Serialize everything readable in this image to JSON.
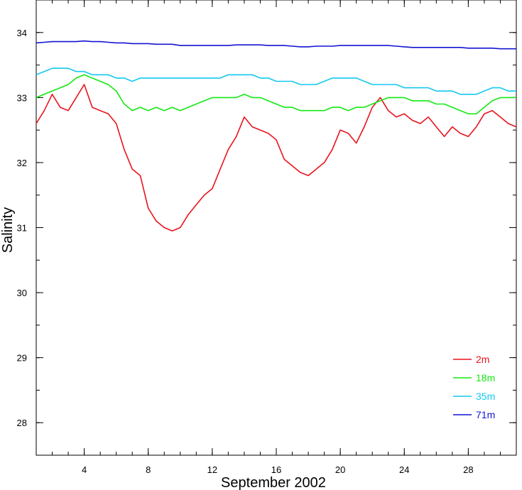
{
  "chart_data": {
    "type": "line",
    "title": "",
    "xlabel": "September 2002",
    "ylabel": "Salinity",
    "xlim": [
      1,
      31
    ],
    "ylim": [
      27.5,
      34.5
    ],
    "x_ticks": [
      4,
      8,
      12,
      16,
      20,
      24,
      28
    ],
    "x_minor_step": 1,
    "y_ticks": [
      28,
      29,
      30,
      31,
      32,
      33,
      34
    ],
    "y_minor_step": 0.5,
    "grid": false,
    "legend_position": "bottom-right",
    "series": [
      {
        "name": "2m",
        "color": "#e8141e",
        "x": [
          1,
          1.5,
          2,
          2.5,
          3,
          3.5,
          4,
          4.5,
          5,
          5.5,
          6,
          6.5,
          7,
          7.5,
          8,
          8.5,
          9,
          9.5,
          10,
          10.5,
          11,
          11.5,
          12,
          12.5,
          13,
          13.5,
          14,
          14.5,
          15,
          15.5,
          16,
          16.5,
          17,
          17.5,
          18,
          18.5,
          19,
          19.5,
          20,
          20.5,
          21,
          21.5,
          22,
          22.5,
          23,
          23.5,
          24,
          24.5,
          25,
          25.5,
          26,
          26.5,
          27,
          27.5,
          28,
          28.5,
          29,
          29.5,
          30,
          30.5,
          31
        ],
        "values": [
          32.6,
          32.8,
          33.05,
          32.85,
          32.8,
          33.0,
          33.2,
          32.85,
          32.8,
          32.75,
          32.6,
          32.2,
          31.9,
          31.8,
          31.3,
          31.1,
          31.0,
          30.95,
          31.0,
          31.2,
          31.35,
          31.5,
          31.6,
          31.9,
          32.2,
          32.4,
          32.7,
          32.55,
          32.5,
          32.45,
          32.35,
          32.05,
          31.95,
          31.85,
          31.8,
          31.9,
          32.0,
          32.2,
          32.5,
          32.45,
          32.3,
          32.55,
          32.85,
          33.0,
          32.8,
          32.7,
          32.75,
          32.65,
          32.6,
          32.7,
          32.55,
          32.4,
          32.55,
          32.45,
          32.4,
          32.55,
          32.75,
          32.8,
          32.7,
          32.6,
          32.55
        ]
      },
      {
        "name": "18m",
        "color": "#14e814",
        "x": [
          1,
          1.5,
          2,
          2.5,
          3,
          3.5,
          4,
          4.5,
          5,
          5.5,
          6,
          6.5,
          7,
          7.5,
          8,
          8.5,
          9,
          9.5,
          10,
          10.5,
          11,
          11.5,
          12,
          12.5,
          13,
          13.5,
          14,
          14.5,
          15,
          15.5,
          16,
          16.5,
          17,
          17.5,
          18,
          18.5,
          19,
          19.5,
          20,
          20.5,
          21,
          21.5,
          22,
          22.5,
          23,
          23.5,
          24,
          24.5,
          25,
          25.5,
          26,
          26.5,
          27,
          27.5,
          28,
          28.5,
          29,
          29.5,
          30,
          30.5,
          31
        ],
        "values": [
          33.0,
          33.05,
          33.1,
          33.15,
          33.2,
          33.3,
          33.35,
          33.3,
          33.25,
          33.2,
          33.1,
          32.9,
          32.8,
          32.85,
          32.8,
          32.85,
          32.8,
          32.85,
          32.8,
          32.85,
          32.9,
          32.95,
          33.0,
          33.0,
          33.0,
          33.0,
          33.05,
          33.0,
          33.0,
          32.95,
          32.9,
          32.85,
          32.85,
          32.8,
          32.8,
          32.8,
          32.8,
          32.85,
          32.85,
          32.8,
          32.85,
          32.85,
          32.9,
          32.95,
          33.0,
          33.0,
          33.0,
          32.95,
          32.95,
          32.95,
          32.9,
          32.9,
          32.85,
          32.8,
          32.75,
          32.75,
          32.85,
          32.95,
          33.0,
          33.0,
          33.0
        ]
      },
      {
        "name": "35m",
        "color": "#14c8f0",
        "x": [
          1,
          1.5,
          2,
          2.5,
          3,
          3.5,
          4,
          4.5,
          5,
          5.5,
          6,
          6.5,
          7,
          7.5,
          8,
          8.5,
          9,
          9.5,
          10,
          10.5,
          11,
          11.5,
          12,
          12.5,
          13,
          13.5,
          14,
          14.5,
          15,
          15.5,
          16,
          16.5,
          17,
          17.5,
          18,
          18.5,
          19,
          19.5,
          20,
          20.5,
          21,
          21.5,
          22,
          22.5,
          23,
          23.5,
          24,
          24.5,
          25,
          25.5,
          26,
          26.5,
          27,
          27.5,
          28,
          28.5,
          29,
          29.5,
          30,
          30.5,
          31
        ],
        "values": [
          33.35,
          33.4,
          33.45,
          33.45,
          33.45,
          33.4,
          33.4,
          33.35,
          33.35,
          33.35,
          33.3,
          33.3,
          33.25,
          33.3,
          33.3,
          33.3,
          33.3,
          33.3,
          33.3,
          33.3,
          33.3,
          33.3,
          33.3,
          33.3,
          33.35,
          33.35,
          33.35,
          33.35,
          33.3,
          33.3,
          33.25,
          33.25,
          33.25,
          33.2,
          33.2,
          33.2,
          33.25,
          33.3,
          33.3,
          33.3,
          33.3,
          33.25,
          33.2,
          33.2,
          33.2,
          33.2,
          33.15,
          33.15,
          33.15,
          33.15,
          33.1,
          33.1,
          33.1,
          33.05,
          33.05,
          33.05,
          33.1,
          33.15,
          33.15,
          33.1,
          33.1
        ]
      },
      {
        "name": "71m",
        "color": "#1414d2",
        "x": [
          1,
          1.5,
          2,
          2.5,
          3,
          3.5,
          4,
          4.5,
          5,
          5.5,
          6,
          6.5,
          7,
          7.5,
          8,
          8.5,
          9,
          9.5,
          10,
          10.5,
          11,
          11.5,
          12,
          12.5,
          13,
          13.5,
          14,
          14.5,
          15,
          15.5,
          16,
          16.5,
          17,
          17.5,
          18,
          18.5,
          19,
          19.5,
          20,
          20.5,
          21,
          21.5,
          22,
          22.5,
          23,
          23.5,
          24,
          24.5,
          25,
          25.5,
          26,
          26.5,
          27,
          27.5,
          28,
          28.5,
          29,
          29.5,
          30,
          30.5,
          31
        ],
        "values": [
          33.84,
          33.85,
          33.86,
          33.86,
          33.86,
          33.86,
          33.87,
          33.86,
          33.86,
          33.85,
          33.84,
          33.84,
          33.83,
          33.83,
          33.83,
          33.82,
          33.82,
          33.82,
          33.8,
          33.8,
          33.8,
          33.8,
          33.8,
          33.8,
          33.8,
          33.81,
          33.81,
          33.81,
          33.81,
          33.8,
          33.8,
          33.8,
          33.79,
          33.78,
          33.78,
          33.79,
          33.79,
          33.79,
          33.8,
          33.8,
          33.8,
          33.8,
          33.8,
          33.8,
          33.8,
          33.79,
          33.78,
          33.77,
          33.77,
          33.77,
          33.77,
          33.77,
          33.77,
          33.77,
          33.76,
          33.76,
          33.76,
          33.76,
          33.75,
          33.75,
          33.75
        ]
      }
    ]
  }
}
